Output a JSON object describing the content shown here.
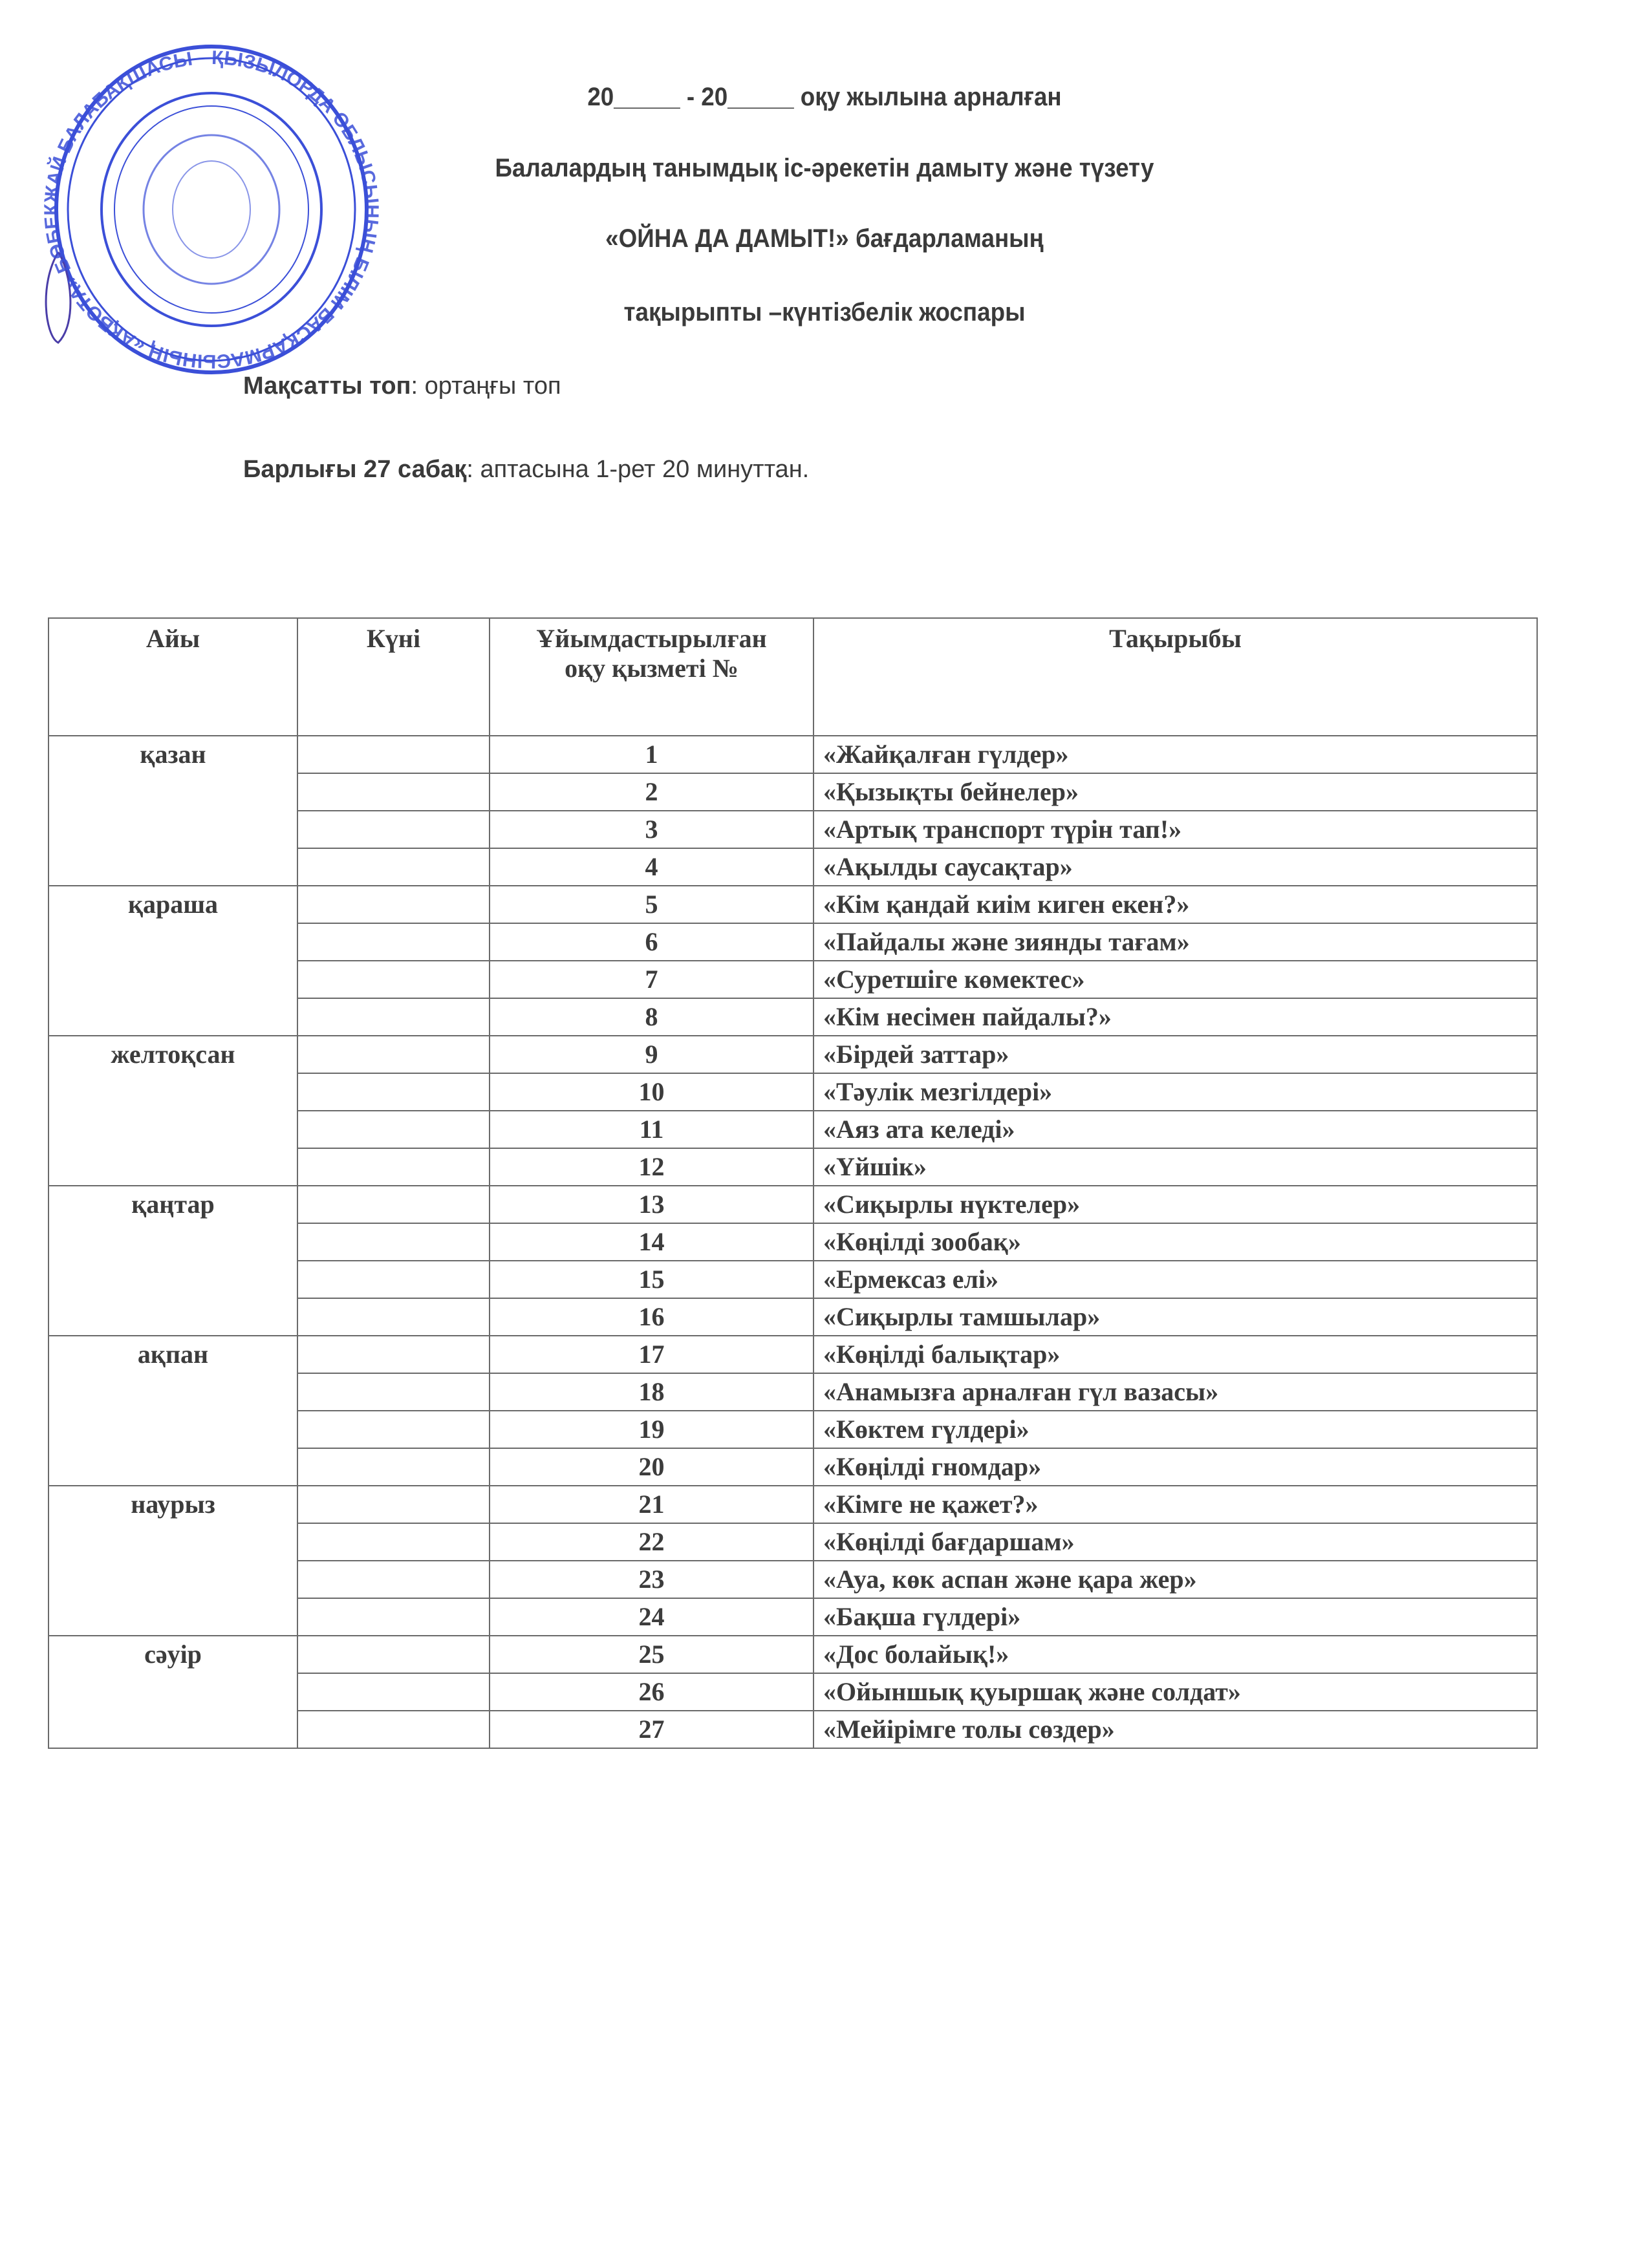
{
  "header": {
    "line1": "20_____ - 20_____ оқу жылына арналған",
    "line2": "Балалардың  танымдық іс-әрекетін дамыту және түзету",
    "line3": "«ОЙНА ДА ДАМЫТ!» бағдарламаның",
    "line4": "тақырыпты –күнтізбелік  жоспары"
  },
  "target_group": {
    "label": "Мақсатты топ",
    "value": ": ортаңғы топ"
  },
  "total": {
    "label": "Барлығы 27 сабақ",
    "value": ": аптасына 1-рет  20  минуттан."
  },
  "stamp": {
    "text": "ҚЫЗЫЛОРДА ОБЛЫСЫНЫҢ БІЛІМ БАСҚАРМАСЫНЫҢ «АҚБОТА» БӨБЕКЖАЙ БАЛАБАҚШАСЫ",
    "color": "#3b4fd8"
  },
  "table": {
    "columns": [
      "Айы",
      "Күні",
      "Ұйымдастырылған оқу қызметі №",
      "Тақырыбы"
    ],
    "groups": [
      {
        "month": "қазан",
        "rows": [
          {
            "n": "1",
            "topic": "«Жайқалған гүлдер»"
          },
          {
            "n": "2",
            "topic": "«Қызықты бейнелер»"
          },
          {
            "n": "3",
            "topic": "«Артық транспорт түрін тап!»"
          },
          {
            "n": "4",
            "topic": "«Ақылды саусақтар»"
          }
        ]
      },
      {
        "month": "қараша",
        "rows": [
          {
            "n": "5",
            "topic": "«Кім қандай киім киген екен?»"
          },
          {
            "n": "6",
            "topic": "«Пайдалы және зиянды тағам»"
          },
          {
            "n": "7",
            "topic": "«Суретшіге көмектес»"
          },
          {
            "n": "8",
            "topic": "«Кім несімен пайдалы?»"
          }
        ]
      },
      {
        "month": "желтоқсан",
        "rows": [
          {
            "n": "9",
            "topic": "«Бірдей заттар»"
          },
          {
            "n": "10",
            "topic": "«Тәулік мезгілдері»"
          },
          {
            "n": "11",
            "topic": "«Аяз ата келеді»"
          },
          {
            "n": "12",
            "topic": "«Үйшік»"
          }
        ]
      },
      {
        "month": "қаңтар",
        "rows": [
          {
            "n": "13",
            "topic": "«Сиқырлы нүктелер»"
          },
          {
            "n": "14",
            "topic": "«Көңілді зообақ»"
          },
          {
            "n": "15",
            "topic": "«Ермексаз елі»"
          },
          {
            "n": "16",
            "topic": "«Сиқырлы тамшылар»"
          }
        ]
      },
      {
        "month": "ақпан",
        "rows": [
          {
            "n": "17",
            "topic": "«Көңілді балықтар»"
          },
          {
            "n": "18",
            "topic": "«Анамызға арналған гүл вазасы»"
          },
          {
            "n": "19",
            "topic": "«Көктем гүлдері»"
          },
          {
            "n": "20",
            "topic": "«Көңілді гномдар»"
          }
        ]
      },
      {
        "month": "наурыз",
        "rows": [
          {
            "n": "21",
            "topic": "«Кімге не қажет?»"
          },
          {
            "n": "22",
            "topic": "«Көңілді бағдаршам»"
          },
          {
            "n": "23",
            "topic": "«Ауа, көк аспан және қара жер»"
          },
          {
            "n": "24",
            "topic": "«Бақша гүлдері»"
          }
        ]
      },
      {
        "month": "сәуір",
        "rows": [
          {
            "n": "25",
            "topic": "«Дос болайық!»"
          },
          {
            "n": "26",
            "topic": "«Ойыншық қуыршақ және солдат»"
          },
          {
            "n": "27",
            "topic": "«Мейірімге толы сөздер»"
          }
        ]
      }
    ]
  }
}
